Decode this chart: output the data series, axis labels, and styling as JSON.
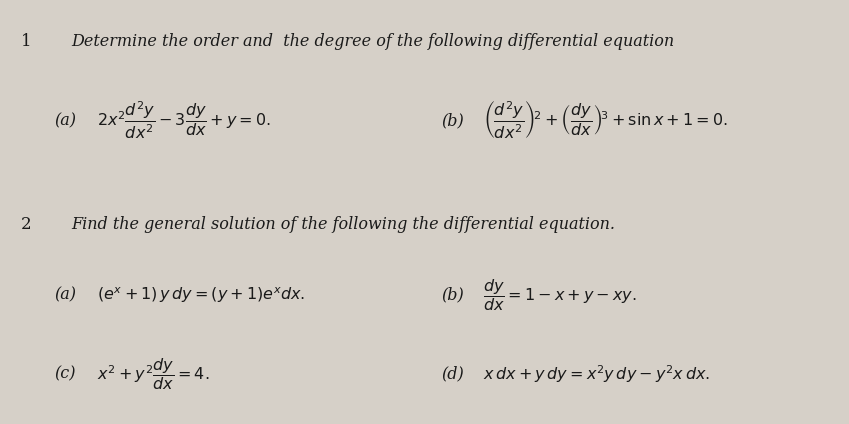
{
  "bg_color": "#d6d0c8",
  "text_color": "#1a1a1a",
  "title1_num": "1",
  "title1_text": "Determine the order and  the degree of the following differential equation",
  "q1a_label": "(a)",
  "q1a_math": "$2x^2\\dfrac{d^2y}{dx^2}-3\\dfrac{dy}{dx}+y=0.$",
  "q1b_label": "(b)",
  "q1b_math": "$\\left(\\dfrac{d^2y}{dx^2}\\right)^{\\!2}+\\left(\\dfrac{dy}{dx}\\right)^{\\!3}+\\sin x+1=0.$",
  "title2_num": "2",
  "title2_text": "Find the general solution of the following the differential equation.",
  "q2a_label": "(a)",
  "q2a_math": "$(e^x+1)\\,y\\,dy=(y+1)e^x dx.$",
  "q2b_label": "(b)",
  "q2b_math": "$\\dfrac{dy}{dx}=1-x+y-xy.$",
  "q2c_label": "(c)",
  "q2c_math": "$x^2+y^2\\dfrac{dy}{dx}=4.$",
  "q2d_label": "(d)",
  "q2d_math": "$x\\,dx+y\\,dy=x^2 y\\,dy-y^2 x\\,dx.$",
  "figsize": [
    8.49,
    4.24
  ],
  "dpi": 100
}
